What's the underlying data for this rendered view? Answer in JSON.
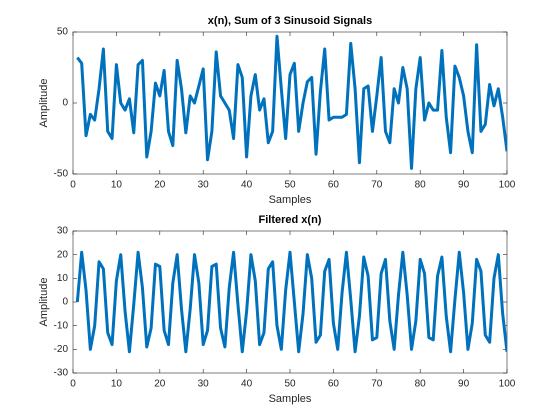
{
  "chart_data": [
    {
      "type": "line",
      "title": "x(n), Sum of 3 Sinusoid Signals",
      "xlabel": "Samples",
      "ylabel": "Amplitude",
      "color": "#0072bd",
      "x": [
        1,
        2,
        3,
        4,
        5,
        6,
        7,
        8,
        9,
        10,
        11,
        12,
        13,
        14,
        15,
        16,
        17,
        18,
        19,
        20,
        21,
        22,
        23,
        24,
        25,
        26,
        27,
        28,
        29,
        30,
        31,
        32,
        33,
        34,
        35,
        36,
        37,
        38,
        39,
        40,
        41,
        42,
        43,
        44,
        45,
        46,
        47,
        48,
        49,
        50,
        51,
        52,
        53,
        54,
        55,
        56,
        57,
        58,
        59,
        60,
        61,
        62,
        63,
        64,
        65,
        66,
        67,
        68,
        69,
        70,
        71,
        72,
        73,
        74,
        75,
        76,
        77,
        78,
        79,
        80,
        81,
        82,
        83,
        84,
        85,
        86,
        87,
        88,
        89,
        90,
        91,
        92,
        93,
        94,
        95,
        96,
        97,
        98,
        99,
        100
      ],
      "values": [
        32,
        28,
        -23,
        -8,
        -12,
        10,
        38,
        -20,
        -25,
        27,
        0,
        -5,
        3,
        -21,
        27,
        30,
        -38,
        -20,
        14,
        5,
        23,
        -20,
        -30,
        30,
        10,
        -21,
        5,
        0,
        12,
        24,
        -40,
        -20,
        36,
        5,
        0,
        -5,
        -25,
        27,
        18,
        -38,
        5,
        20,
        -5,
        3,
        -28,
        -20,
        47,
        10,
        -25,
        20,
        28,
        -20,
        0,
        15,
        18,
        -36,
        8,
        38,
        -12,
        -10,
        -10,
        -10,
        -8,
        42,
        10,
        -42,
        10,
        12,
        -20,
        5,
        32,
        -20,
        -28,
        10,
        0,
        25,
        10,
        -46,
        10,
        32,
        -12,
        0,
        -5,
        -5,
        37,
        -10,
        -35,
        26,
        18,
        5,
        -20,
        -35,
        41,
        -20,
        -15,
        13,
        -2,
        10,
        -10,
        -34
      ],
      "xlim": [
        0,
        100
      ],
      "xticks": [
        0,
        10,
        20,
        30,
        40,
        50,
        60,
        70,
        80,
        90,
        100
      ],
      "ylim": [
        -50,
        50
      ],
      "yticks": [
        -50,
        0,
        50
      ],
      "grid": false
    },
    {
      "type": "line",
      "title": "Filtered x(n)",
      "xlabel": "Samples",
      "ylabel": "Amplitude",
      "color": "#0072bd",
      "x": [
        1,
        2,
        3,
        4,
        5,
        6,
        7,
        8,
        9,
        10,
        11,
        12,
        13,
        14,
        15,
        16,
        17,
        18,
        19,
        20,
        21,
        22,
        23,
        24,
        25,
        26,
        27,
        28,
        29,
        30,
        31,
        32,
        33,
        34,
        35,
        36,
        37,
        38,
        39,
        40,
        41,
        42,
        43,
        44,
        45,
        46,
        47,
        48,
        49,
        50,
        51,
        52,
        53,
        54,
        55,
        56,
        57,
        58,
        59,
        60,
        61,
        62,
        63,
        64,
        65,
        66,
        67,
        68,
        69,
        70,
        71,
        72,
        73,
        74,
        75,
        76,
        77,
        78,
        79,
        80,
        81,
        82,
        83,
        84,
        85,
        86,
        87,
        88,
        89,
        90,
        91,
        92,
        93,
        94,
        95,
        96,
        97,
        98,
        99,
        100
      ],
      "values": [
        0,
        21,
        5,
        -20,
        -10,
        17,
        14,
        -13,
        -18,
        9,
        20,
        -4,
        -21,
        -1,
        21,
        6,
        -19,
        -11,
        16,
        15,
        -12,
        -18,
        8,
        20,
        -3,
        -21,
        -3,
        20,
        8,
        -18,
        -12,
        15,
        16,
        -11,
        -19,
        6,
        21,
        -1,
        -21,
        -4,
        20,
        9,
        -18,
        -13,
        14,
        17,
        -10,
        -20,
        5,
        21,
        0,
        -21,
        -5,
        20,
        10,
        -17,
        -14,
        13,
        18,
        -9,
        -20,
        4,
        21,
        1,
        -21,
        -6,
        19,
        11,
        -16,
        -15,
        12,
        18,
        -8,
        -20,
        3,
        21,
        3,
        -20,
        -8,
        18,
        12,
        -15,
        -16,
        11,
        19,
        -6,
        -21,
        1,
        21,
        4,
        -20,
        -9,
        18,
        13,
        -14,
        -17,
        10,
        20,
        -5,
        -21
      ],
      "xlim": [
        0,
        100
      ],
      "xticks": [
        0,
        10,
        20,
        30,
        40,
        50,
        60,
        70,
        80,
        90,
        100
      ],
      "ylim": [
        -30,
        30
      ],
      "yticks": [
        -30,
        -20,
        -10,
        0,
        10,
        20,
        30
      ],
      "grid": false
    }
  ]
}
